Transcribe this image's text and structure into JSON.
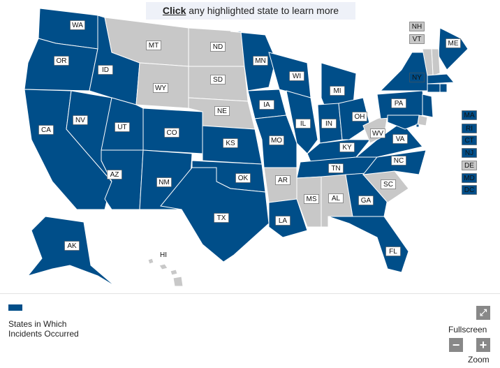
{
  "header": {
    "link": "Click",
    "text": "any highlighted state to learn more"
  },
  "colors": {
    "highlighted": "#004e89",
    "other": "#c8c8c8"
  },
  "states": [
    {
      "label": "WA",
      "highlighted": true
    },
    {
      "label": "OR",
      "highlighted": true
    },
    {
      "label": "CA",
      "highlighted": true
    },
    {
      "label": "NV",
      "highlighted": true
    },
    {
      "label": "ID",
      "highlighted": true
    },
    {
      "label": "MT",
      "highlighted": false
    },
    {
      "label": "WY",
      "highlighted": false
    },
    {
      "label": "UT",
      "highlighted": true
    },
    {
      "label": "AZ",
      "highlighted": true
    },
    {
      "label": "CO",
      "highlighted": true
    },
    {
      "label": "NM",
      "highlighted": true
    },
    {
      "label": "ND",
      "highlighted": false
    },
    {
      "label": "SD",
      "highlighted": false
    },
    {
      "label": "NE",
      "highlighted": false
    },
    {
      "label": "KS",
      "highlighted": true
    },
    {
      "label": "OK",
      "highlighted": true
    },
    {
      "label": "TX",
      "highlighted": true
    },
    {
      "label": "MN",
      "highlighted": true
    },
    {
      "label": "IA",
      "highlighted": true
    },
    {
      "label": "MO",
      "highlighted": true
    },
    {
      "label": "AR",
      "highlighted": false
    },
    {
      "label": "LA",
      "highlighted": true
    },
    {
      "label": "WI",
      "highlighted": true
    },
    {
      "label": "IL",
      "highlighted": true
    },
    {
      "label": "MI",
      "highlighted": true
    },
    {
      "label": "IN",
      "highlighted": true
    },
    {
      "label": "OH",
      "highlighted": true
    },
    {
      "label": "KY",
      "highlighted": true
    },
    {
      "label": "TN",
      "highlighted": true
    },
    {
      "label": "MS",
      "highlighted": false
    },
    {
      "label": "AL",
      "highlighted": false
    },
    {
      "label": "GA",
      "highlighted": true
    },
    {
      "label": "FL",
      "highlighted": true
    },
    {
      "label": "SC",
      "highlighted": false
    },
    {
      "label": "NC",
      "highlighted": true
    },
    {
      "label": "VA",
      "highlighted": true
    },
    {
      "label": "WV",
      "highlighted": false
    },
    {
      "label": "PA",
      "highlighted": true
    },
    {
      "label": "NY",
      "highlighted": true
    },
    {
      "label": "ME",
      "highlighted": true
    },
    {
      "label": "NH",
      "highlighted": false
    },
    {
      "label": "VT",
      "highlighted": false
    },
    {
      "label": "MA",
      "highlighted": true
    },
    {
      "label": "RI",
      "highlighted": true
    },
    {
      "label": "CT",
      "highlighted": true
    },
    {
      "label": "NJ",
      "highlighted": true
    },
    {
      "label": "DE",
      "highlighted": false
    },
    {
      "label": "MD",
      "highlighted": true
    },
    {
      "label": "DC",
      "highlighted": true
    },
    {
      "label": "AK",
      "highlighted": true
    },
    {
      "label": "HI",
      "highlighted": false
    }
  ],
  "legend": {
    "label": "States in Which Incidents Occurred"
  },
  "controls": {
    "fullscreen": "Fullscreen",
    "zoom": "Zoom"
  }
}
